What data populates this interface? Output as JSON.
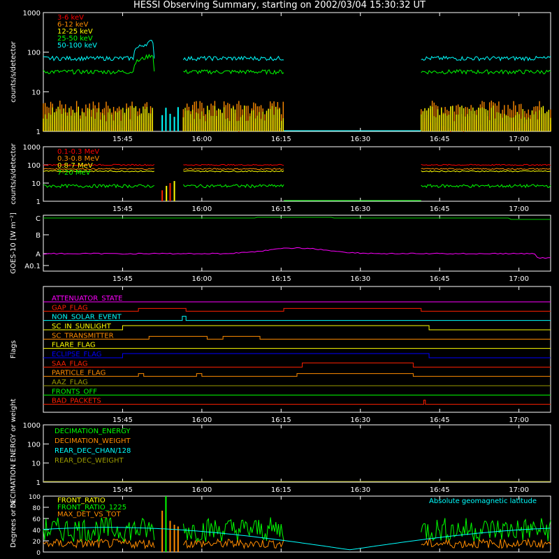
{
  "title": "HESSI Observing Summary, starting on 2002/03/04 15:30:32 UT",
  "chart_data": [
    {
      "id": "lowE",
      "type": "line",
      "ylabel": "counts/s/detector",
      "log": true,
      "ylim": [
        1,
        1000
      ],
      "yticks": [
        "1",
        "10",
        "100",
        "1000"
      ],
      "xtick_labels": [
        "15:45",
        "16:00",
        "16:15",
        "16:30",
        "16:45",
        "17:00"
      ],
      "x_minutes": [
        15,
        30,
        45,
        60,
        75,
        90
      ],
      "series": [
        {
          "name": "3-6 keV",
          "color": "#ff0000",
          "kind": "bars",
          "level": 1.6
        },
        {
          "name": "6-12 keV",
          "color": "#ff8c00",
          "kind": "bars",
          "level": 4
        },
        {
          "name": "12-25 keV",
          "color": "#ffff00",
          "kind": "bars",
          "level": 3
        },
        {
          "name": "25-50 keV",
          "color": "#00ff00",
          "kind": "line",
          "level": 32
        },
        {
          "name": "50-100 keV",
          "color": "#00ffff",
          "kind": "line",
          "level": 70
        }
      ]
    },
    {
      "id": "highE",
      "type": "line",
      "ylabel": "counts/s/detector",
      "log": true,
      "ylim": [
        1,
        1000
      ],
      "yticks": [
        "1",
        "10",
        "100",
        "1000"
      ],
      "xtick_labels": [
        "15:45",
        "16:00",
        "16:15",
        "16:30",
        "16:45",
        "17:00"
      ],
      "series": [
        {
          "name": "0.1-0.3 MeV",
          "color": "#ff0000",
          "level": 100
        },
        {
          "name": "0.3-0.8 MeV",
          "color": "#ff8c00",
          "level": 60
        },
        {
          "name": "0.8-7 MeV",
          "color": "#ffff00",
          "level": 45
        },
        {
          "name": "7-20 MeV",
          "color": "#00ff00",
          "level": 7
        }
      ]
    },
    {
      "id": "goes",
      "type": "line",
      "ylabel": "GOES-10 [W m⁻²]",
      "yticks": [
        "A0.1",
        "A",
        "B",
        "C"
      ],
      "xtick_labels": [
        "15:45",
        "16:00",
        "16:15",
        "16:30",
        "16:45",
        "17:00"
      ],
      "series": [
        {
          "color": "#00cc00",
          "level": 2.95
        },
        {
          "color": "#ff00ff",
          "level": 0.5
        }
      ]
    },
    {
      "id": "flags",
      "type": "line",
      "ylabel": "Flags",
      "xtick_labels": [
        "15:45",
        "16:00",
        "16:15",
        "16:30",
        "16:45",
        "17:00"
      ],
      "flags": [
        {
          "name": "ATTENUATOR_STATE",
          "color": "#ff00ff"
        },
        {
          "name": "GAP_FLAG",
          "color": "#ff2000"
        },
        {
          "name": "NON_SOLAR_EVENT",
          "color": "#00ffff"
        },
        {
          "name": "SC_IN_SUNLIGHT",
          "color": "#ffff00"
        },
        {
          "name": "SC_TRANSMITTER",
          "color": "#ff8c00"
        },
        {
          "name": "FLARE_FLAG",
          "color": "#ffff00"
        },
        {
          "name": "ECLIPSE_FLAG",
          "color": "#0000ff"
        },
        {
          "name": "SAA_FLAG",
          "color": "#ff2000"
        },
        {
          "name": "PARTICLE_FLAG",
          "color": "#ff8c00"
        },
        {
          "name": "AAZ_FLAG",
          "color": "#9a9a00"
        },
        {
          "name": "FRONTS_OFF",
          "color": "#00ff00"
        },
        {
          "name": "BAD_PACKETS",
          "color": "#ff2000"
        }
      ]
    },
    {
      "id": "decim",
      "type": "line",
      "ylabel": "DECIMATION ENERGY or weight",
      "log": true,
      "yticks": [
        "1",
        "10",
        "100",
        "1000"
      ],
      "xtick_labels": [
        "15:45",
        "16:00",
        "16:15",
        "16:30",
        "16:45",
        "17:00"
      ],
      "series": [
        {
          "name": "DECIMATION_ENERGY",
          "color": "#00ff00"
        },
        {
          "name": "DECIMATION_WEIGHT",
          "color": "#ff8c00"
        },
        {
          "name": "REAR_DEC_CHAN/128",
          "color": "#00ffff"
        },
        {
          "name": "REAR_DEC_WEIGHT",
          "color": "#9a9a00"
        }
      ]
    },
    {
      "id": "ratio",
      "type": "line",
      "ylabel": "Degrees or %",
      "ylim": [
        0,
        100
      ],
      "yticks": [
        "0",
        "20",
        "40",
        "60",
        "80",
        "100"
      ],
      "series": [
        {
          "name": "FRONT_RATIO",
          "color": "#ffff00"
        },
        {
          "name": "FRONT_RATIO_1225",
          "color": "#00ff00",
          "level": 40
        },
        {
          "name": "MAX_DET_VS_TOT",
          "color": "#ff8c00",
          "level": 15
        }
      ],
      "annotation": {
        "text": "Absolute geomagnetic latitude",
        "color": "#00ffff"
      }
    }
  ]
}
